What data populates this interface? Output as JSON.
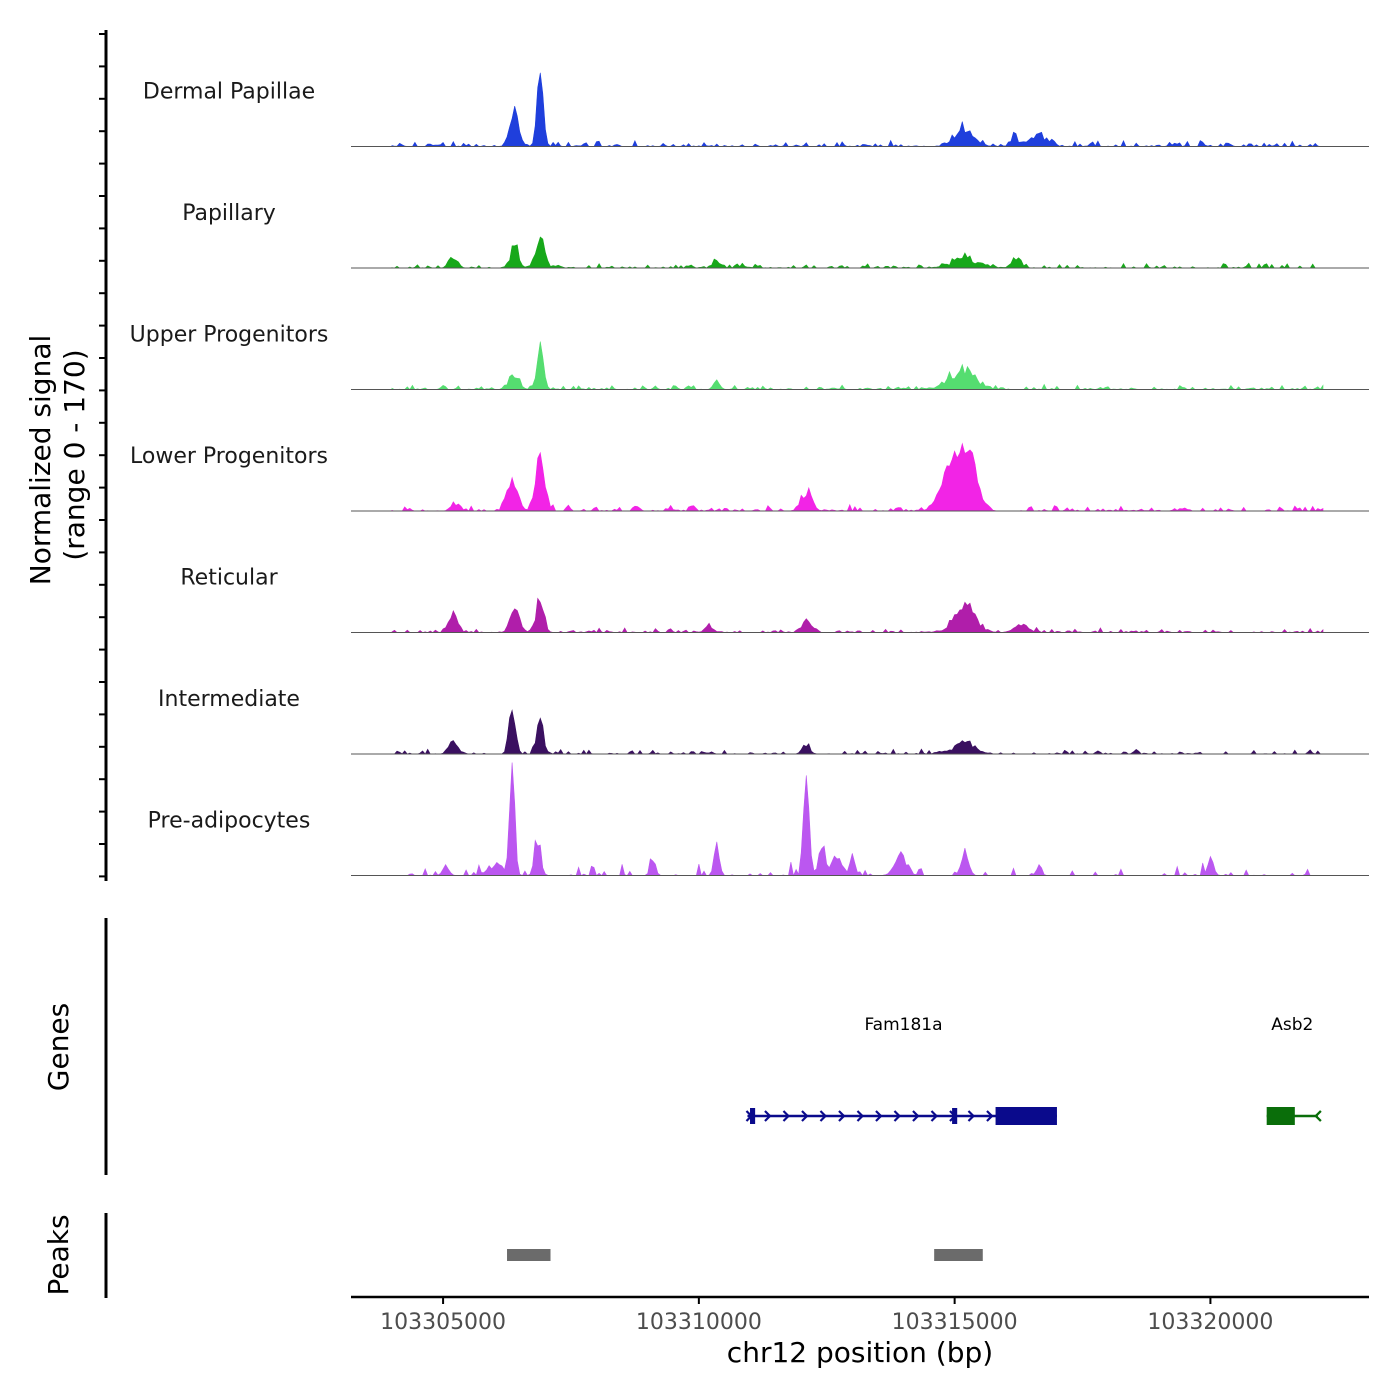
{
  "chart_data": {
    "type": "area",
    "title": "",
    "ylabel_line1": "Normalized signal",
    "ylabel_line2": "(range 0 - 170)",
    "yrange": [
      0,
      170
    ],
    "xlabel": "chr12 position (bp)",
    "xlim": [
      103303200,
      103323100
    ],
    "xticks": [
      103305000,
      103310000,
      103315000,
      103320000
    ],
    "xtick_labels": [
      "103305000",
      "103310000",
      "103315000",
      "103320000"
    ],
    "bin_size_bp": 50,
    "tracks": [
      {
        "name": "Dermal Papillae",
        "color": "#1f3fdc",
        "noise": 5,
        "noise_frac": 0.55,
        "peaks": [
          {
            "center": 103306400,
            "width": 90,
            "height": 52,
            "jitter": 0.25
          },
          {
            "center": 103306900,
            "width": 60,
            "height": 108,
            "jitter": 0.15
          },
          {
            "center": 103315200,
            "width": 180,
            "height": 30,
            "jitter": 0.3
          },
          {
            "center": 103316600,
            "width": 180,
            "height": 18,
            "jitter": 0.4
          },
          {
            "center": 103316150,
            "width": 60,
            "height": 15,
            "jitter": 0.4
          }
        ]
      },
      {
        "name": "Papillary",
        "color": "#17a81a",
        "noise": 4,
        "noise_frac": 0.6,
        "peaks": [
          {
            "center": 103306400,
            "width": 70,
            "height": 35,
            "jitter": 0.25
          },
          {
            "center": 103306900,
            "width": 80,
            "height": 52,
            "jitter": 0.25
          },
          {
            "center": 103305200,
            "width": 80,
            "height": 16,
            "jitter": 0.3
          },
          {
            "center": 103315200,
            "width": 250,
            "height": 14,
            "jitter": 0.4
          },
          {
            "center": 103316200,
            "width": 80,
            "height": 15,
            "jitter": 0.3
          },
          {
            "center": 103310350,
            "width": 70,
            "height": 12,
            "jitter": 0.3
          }
        ]
      },
      {
        "name": "Upper Progenitors",
        "color": "#55dd70",
        "noise": 4,
        "noise_frac": 0.6,
        "peaks": [
          {
            "center": 103306400,
            "width": 90,
            "height": 22,
            "jitter": 0.3
          },
          {
            "center": 103306900,
            "width": 60,
            "height": 75,
            "jitter": 0.2
          },
          {
            "center": 103310350,
            "width": 60,
            "height": 12,
            "jitter": 0.3
          },
          {
            "center": 103315150,
            "width": 250,
            "height": 28,
            "jitter": 0.35
          }
        ]
      },
      {
        "name": "Lower Progenitors",
        "color": "#f224e6",
        "noise": 5,
        "noise_frac": 0.6,
        "peaks": [
          {
            "center": 103306350,
            "width": 100,
            "height": 45,
            "jitter": 0.2
          },
          {
            "center": 103306900,
            "width": 90,
            "height": 80,
            "jitter": 0.2
          },
          {
            "center": 103312100,
            "width": 100,
            "height": 28,
            "jitter": 0.3
          },
          {
            "center": 103314900,
            "width": 180,
            "height": 60,
            "jitter": 0.25
          },
          {
            "center": 103315250,
            "width": 170,
            "height": 85,
            "jitter": 0.2
          },
          {
            "center": 103305250,
            "width": 80,
            "height": 10,
            "jitter": 0.3
          }
        ]
      },
      {
        "name": "Reticular",
        "color": "#b01eaa",
        "noise": 4,
        "noise_frac": 0.6,
        "peaks": [
          {
            "center": 103305200,
            "width": 80,
            "height": 28,
            "jitter": 0.25
          },
          {
            "center": 103306400,
            "width": 80,
            "height": 42,
            "jitter": 0.25
          },
          {
            "center": 103306900,
            "width": 70,
            "height": 52,
            "jitter": 0.25
          },
          {
            "center": 103312100,
            "width": 80,
            "height": 18,
            "jitter": 0.3
          },
          {
            "center": 103315200,
            "width": 200,
            "height": 38,
            "jitter": 0.3
          },
          {
            "center": 103316300,
            "width": 130,
            "height": 14,
            "jitter": 0.35
          },
          {
            "center": 103310200,
            "width": 80,
            "height": 10,
            "jitter": 0.3
          }
        ]
      },
      {
        "name": "Intermediate",
        "color": "#3a1060",
        "noise": 4,
        "noise_frac": 0.5,
        "peaks": [
          {
            "center": 103305200,
            "width": 80,
            "height": 20,
            "jitter": 0.2
          },
          {
            "center": 103306350,
            "width": 60,
            "height": 70,
            "jitter": 0.2
          },
          {
            "center": 103306900,
            "width": 60,
            "height": 55,
            "jitter": 0.2
          },
          {
            "center": 103312100,
            "width": 70,
            "height": 15,
            "jitter": 0.3
          },
          {
            "center": 103315200,
            "width": 200,
            "height": 16,
            "jitter": 0.3
          }
        ]
      },
      {
        "name": "Pre-adipocytes",
        "color": "#bb57f0",
        "noise": 12,
        "noise_frac": 0.22,
        "peaks": [
          {
            "center": 103306350,
            "width": 50,
            "height": 170,
            "jitter": 0.1
          },
          {
            "center": 103306850,
            "width": 60,
            "height": 55,
            "jitter": 0.25
          },
          {
            "center": 103306000,
            "width": 150,
            "height": 18,
            "jitter": 0.5
          },
          {
            "center": 103312100,
            "width": 50,
            "height": 160,
            "jitter": 0.1
          },
          {
            "center": 103312400,
            "width": 60,
            "height": 48,
            "jitter": 0.3
          },
          {
            "center": 103312700,
            "width": 90,
            "height": 30,
            "jitter": 0.4
          },
          {
            "center": 103313000,
            "width": 50,
            "height": 36,
            "jitter": 0.3
          },
          {
            "center": 103313950,
            "width": 120,
            "height": 28,
            "jitter": 0.4
          },
          {
            "center": 103315200,
            "width": 70,
            "height": 35,
            "jitter": 0.3
          },
          {
            "center": 103310350,
            "width": 50,
            "height": 45,
            "jitter": 0.2
          },
          {
            "center": 103309100,
            "width": 50,
            "height": 26,
            "jitter": 0.3
          },
          {
            "center": 103305050,
            "width": 60,
            "height": 18,
            "jitter": 0.3
          },
          {
            "center": 103320000,
            "width": 60,
            "height": 22,
            "jitter": 0.3
          },
          {
            "center": 103316650,
            "width": 50,
            "height": 15,
            "jitter": 0.3
          }
        ]
      }
    ],
    "genes_track": {
      "label": "Genes",
      "genes": [
        {
          "name": "Fam181a",
          "start": 103310950,
          "end": 103317000,
          "strand": "+",
          "color": "#0a0a8c",
          "exons": [
            [
              103311000,
              103311100
            ],
            [
              103314950,
              103315050
            ],
            [
              103315800,
              103317000
            ]
          ],
          "thick": [
            103315800,
            103317000
          ]
        },
        {
          "name": "Asb2",
          "start": 103321100,
          "end": 103322100,
          "strand": "-",
          "color": "#0a6e0a",
          "exons": [
            [
              103321100,
              103321650
            ]
          ],
          "thick": [
            103321100,
            103321650
          ]
        }
      ]
    },
    "peaks_track": {
      "label": "Peaks",
      "color": "#6b6b6b",
      "regions": [
        [
          103306250,
          103307100
        ],
        [
          103314600,
          103315550
        ]
      ]
    }
  }
}
